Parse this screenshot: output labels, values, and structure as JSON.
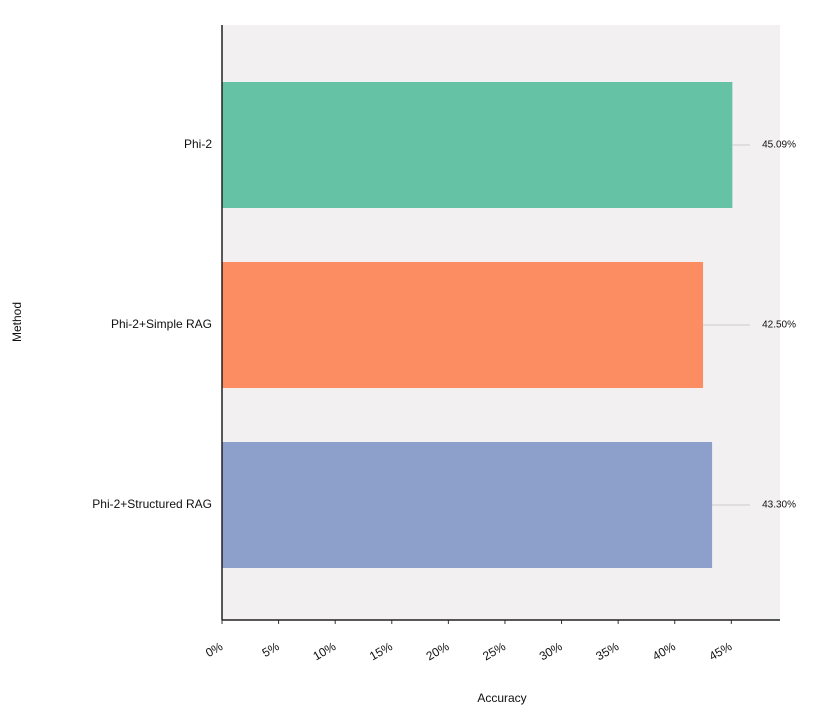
{
  "chart_data": {
    "type": "hbar",
    "categories": [
      "Phi-2",
      "Phi-2+Simple RAG",
      "Phi-2+Structured RAG"
    ],
    "values": [
      45.09,
      42.5,
      43.3
    ],
    "value_labels": [
      "45.09%",
      "42.50%",
      "43.30%"
    ],
    "colors": [
      "#66c2a5",
      "#fc8d62",
      "#8da0cb"
    ],
    "xlim": [
      0,
      49.3
    ],
    "xticks": [
      {
        "value": 0,
        "label": "0%"
      },
      {
        "value": 5,
        "label": "5%"
      },
      {
        "value": 10,
        "label": "10%"
      },
      {
        "value": 15,
        "label": "15%"
      },
      {
        "value": 20,
        "label": "20%"
      },
      {
        "value": 25,
        "label": "25%"
      },
      {
        "value": 30,
        "label": "30%"
      },
      {
        "value": 35,
        "label": "35%"
      },
      {
        "value": 40,
        "label": "40%"
      },
      {
        "value": 45,
        "label": "45%"
      }
    ],
    "xlabel": "Accuracy",
    "ylabel": "Method"
  }
}
